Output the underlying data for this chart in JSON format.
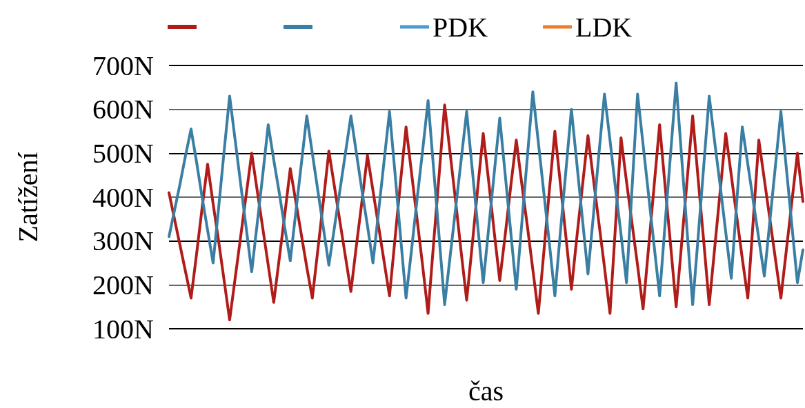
{
  "chart_data": {
    "type": "line",
    "xlabel": "čas",
    "ylabel": "Zatížení",
    "categories": [
      null,
      null,
      null,
      null,
      null,
      null,
      null,
      null,
      null,
      null,
      null,
      null,
      null,
      null,
      null,
      null,
      null,
      null,
      null,
      null,
      null,
      null,
      null,
      null,
      null,
      null,
      null,
      null,
      null,
      null,
      null,
      null,
      null,
      null,
      null,
      null,
      null,
      null,
      null,
      null,
      null,
      null,
      null,
      null,
      null,
      null,
      null,
      null,
      null,
      null,
      null,
      null,
      null,
      null,
      null,
      null,
      null,
      null,
      null,
      null,
      null,
      null,
      null,
      null,
      null,
      null,
      null,
      null,
      null,
      null,
      null,
      null,
      null,
      null,
      null,
      null,
      null,
      null,
      null,
      null,
      null,
      null,
      null,
      null,
      null,
      null,
      null,
      null,
      null,
      null,
      null,
      null,
      null,
      null,
      null,
      null,
      null,
      null,
      null,
      null,
      null,
      null,
      null,
      null,
      null,
      null,
      null,
      null,
      null,
      null,
      null,
      null,
      null,
      null,
      null,
      null
    ],
    "series": [
      {
        "color": "#b01c19",
        "values": [
          410,
          350,
          290,
          230,
          170,
          270,
          375,
          475,
          385,
          300,
          210,
          120,
          215,
          310,
          405,
          500,
          415,
          330,
          245,
          160,
          260,
          360,
          465,
          390,
          315,
          240,
          170,
          280,
          390,
          505,
          425,
          345,
          265,
          185,
          290,
          390,
          495,
          415,
          335,
          255,
          175,
          305,
          435,
          560,
          455,
          350,
          245,
          135,
          295,
          450,
          610,
          500,
          390,
          275,
          165,
          290,
          420,
          545,
          435,
          320,
          210,
          315,
          425,
          530,
          430,
          335,
          235,
          135,
          275,
          415,
          550,
          430,
          310,
          190,
          310,
          425,
          540,
          440,
          340,
          240,
          135,
          335,
          535,
          435,
          340,
          245,
          145,
          285,
          425,
          565,
          425,
          290,
          150,
          295,
          440,
          585,
          440,
          300,
          155,
          285,
          415,
          545,
          450,
          355,
          260,
          170,
          350,
          530,
          440,
          350,
          260,
          170,
          280,
          390,
          500,
          390
        ]
      },
      {
        "color": "#3a7fa3",
        "values": [
          310,
          370,
          430,
          495,
          555,
          480,
          400,
          325,
          250,
          375,
          505,
          630,
          530,
          430,
          330,
          230,
          340,
          450,
          565,
          485,
          410,
          330,
          255,
          365,
          475,
          585,
          500,
          415,
          330,
          245,
          330,
          415,
          500,
          585,
          500,
          415,
          335,
          250,
          365,
          480,
          595,
          455,
          310,
          170,
          280,
          395,
          505,
          620,
          465,
          310,
          155,
          265,
          375,
          485,
          595,
          465,
          335,
          205,
          330,
          455,
          580,
          450,
          320,
          190,
          340,
          490,
          640,
          525,
          410,
          295,
          175,
          320,
          460,
          600,
          475,
          350,
          225,
          360,
          500,
          635,
          530,
          420,
          315,
          205,
          420,
          635,
          520,
          405,
          290,
          175,
          340,
          500,
          660,
          490,
          320,
          155,
          310,
          470,
          630,
          525,
          425,
          320,
          215,
          390,
          560,
          475,
          390,
          305,
          220,
          345,
          470,
          595,
          465,
          335,
          205,
          280
        ]
      },
      {
        "name": "PDK",
        "color": "#4a9bd4",
        "values": [
          null,
          null,
          null,
          null,
          null,
          null,
          null,
          null,
          null,
          null,
          null,
          null,
          null,
          null,
          null,
          null,
          null,
          null,
          null,
          null,
          null,
          null,
          null,
          null,
          null,
          null,
          null,
          null,
          null,
          null,
          null,
          null,
          null,
          null,
          null,
          null,
          null,
          null,
          null,
          null,
          null,
          null,
          null,
          null,
          null,
          null,
          null,
          null,
          null,
          null,
          null,
          null,
          null,
          null,
          null,
          null,
          null,
          null,
          null,
          null,
          null,
          null,
          null,
          null,
          null,
          null,
          null,
          null,
          null,
          null,
          null,
          null,
          null,
          null,
          null,
          null,
          null,
          null,
          null,
          null,
          null,
          null,
          null,
          null,
          null,
          null,
          null,
          null,
          null,
          null,
          null,
          null,
          null,
          null,
          null,
          null,
          null,
          null,
          null,
          null,
          null,
          null,
          null,
          null,
          null,
          null,
          null,
          null,
          null,
          null,
          null,
          null,
          null,
          null,
          null,
          null
        ]
      },
      {
        "name": "LDK",
        "color": "#ed7d31",
        "values": [
          null,
          null,
          null,
          null,
          null,
          null,
          null,
          null,
          null,
          null,
          null,
          null,
          null,
          null,
          null,
          null,
          null,
          null,
          null,
          null,
          null,
          null,
          null,
          null,
          null,
          null,
          null,
          null,
          null,
          null,
          null,
          null,
          null,
          null,
          null,
          null,
          null,
          null,
          null,
          null,
          null,
          null,
          null,
          null,
          null,
          null,
          null,
          null,
          null,
          null,
          null,
          null,
          null,
          null,
          null,
          null,
          null,
          null,
          null,
          null,
          null,
          null,
          null,
          null,
          null,
          null,
          null,
          null,
          null,
          null,
          null,
          null,
          null,
          null,
          null,
          null,
          null,
          null,
          null,
          null,
          null,
          null,
          null,
          null,
          null,
          null,
          null,
          null,
          null,
          null,
          null,
          null,
          null,
          null,
          null,
          null,
          null,
          null,
          null,
          null,
          null,
          null,
          null,
          null,
          null,
          null,
          null,
          null,
          null,
          null,
          null,
          null,
          null,
          null,
          null,
          null
        ]
      }
    ],
    "ylim": [
      100,
      700
    ],
    "yticks": [
      {
        "value": 100,
        "label": "100N"
      },
      {
        "value": 200,
        "label": "200N"
      },
      {
        "value": 300,
        "label": "300N"
      },
      {
        "value": 400,
        "label": "400N"
      },
      {
        "value": 500,
        "label": "500N"
      },
      {
        "value": 600,
        "label": "600N"
      },
      {
        "value": 700,
        "label": "700N"
      }
    ],
    "grid": "y",
    "legend": "top",
    "marker": "none",
    "line_style": "solid"
  }
}
